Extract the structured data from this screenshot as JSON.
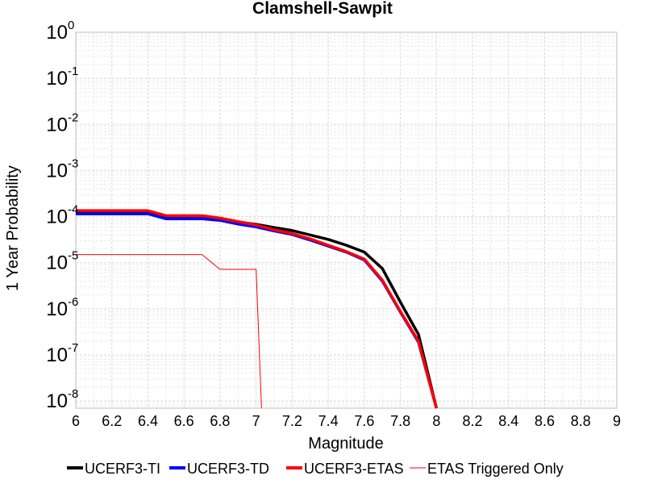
{
  "chart_data": {
    "type": "line",
    "title": "Clamshell-Sawpit",
    "xlabel": "Magnitude",
    "ylabel": "1 Year Probability",
    "xlim": [
      6,
      9
    ],
    "ylim": [
      7e-09,
      1
    ],
    "yscale": "log",
    "grid": true,
    "legend_position": "bottom",
    "x_ticks": [
      "6",
      "6.2",
      "6.4",
      "6.6",
      "6.8",
      "7",
      "7.2",
      "7.4",
      "7.6",
      "7.8",
      "8",
      "8.2",
      "8.4",
      "8.6",
      "8.8",
      "9"
    ],
    "y_ticks": [
      {
        "base": "10",
        "exp": "0"
      },
      {
        "base": "10",
        "exp": "-1"
      },
      {
        "base": "10",
        "exp": "-2"
      },
      {
        "base": "10",
        "exp": "-3"
      },
      {
        "base": "10",
        "exp": "-4"
      },
      {
        "base": "10",
        "exp": "-5"
      },
      {
        "base": "10",
        "exp": "-6"
      },
      {
        "base": "10",
        "exp": "-7"
      },
      {
        "base": "10",
        "exp": "-8"
      }
    ],
    "series": [
      {
        "name": "UCERF3-TI",
        "color": "#000000",
        "width": 3.5,
        "x": [
          6.0,
          6.1,
          6.2,
          6.3,
          6.4,
          6.5,
          6.6,
          6.7,
          6.8,
          6.9,
          7.0,
          7.1,
          7.2,
          7.3,
          7.4,
          7.5,
          7.6,
          7.7,
          7.8,
          7.9,
          8.0
        ],
        "y": [
          0.00012,
          0.00012,
          0.00012,
          0.00012,
          0.00012,
          9.5e-05,
          9.5e-05,
          9.5e-05,
          8.8e-05,
          7.6e-05,
          6.8e-05,
          5.8e-05,
          5e-05,
          4e-05,
          3.2e-05,
          2.4e-05,
          1.7e-05,
          7.5e-06,
          1.4e-06,
          2.8e-07,
          7e-09
        ]
      },
      {
        "name": "UCERF3-TD",
        "color": "#0000ff",
        "width": 3.5,
        "x": [
          6.0,
          6.1,
          6.2,
          6.3,
          6.4,
          6.5,
          6.6,
          6.7,
          6.8,
          6.9,
          7.0,
          7.1,
          7.2,
          7.3,
          7.4,
          7.5,
          7.6,
          7.7,
          7.8,
          7.9,
          8.0
        ],
        "y": [
          0.000115,
          0.000115,
          0.000115,
          0.000115,
          0.000115,
          9e-05,
          9e-05,
          9e-05,
          8.3e-05,
          6.9e-05,
          6e-05,
          4.9e-05,
          4.1e-05,
          3.1e-05,
          2.3e-05,
          1.7e-05,
          1.15e-05,
          4e-06,
          8.5e-07,
          1.9e-07,
          7e-09
        ]
      },
      {
        "name": "UCERF3-ETAS",
        "color": "#ff0000",
        "width": 3.5,
        "x": [
          6.0,
          6.1,
          6.2,
          6.3,
          6.4,
          6.5,
          6.6,
          6.7,
          6.8,
          6.9,
          7.0,
          7.1,
          7.2,
          7.3,
          7.4,
          7.5,
          7.6,
          7.7,
          7.8,
          7.9,
          8.0
        ],
        "y": [
          0.000135,
          0.000135,
          0.000135,
          0.000135,
          0.000135,
          0.000105,
          0.000105,
          0.000105,
          9.3e-05,
          7.8e-05,
          6.6e-05,
          5.2e-05,
          4.3e-05,
          3.3e-05,
          2.4e-05,
          1.75e-05,
          1.2e-05,
          4.2e-06,
          8.8e-07,
          2e-07,
          7e-09
        ]
      },
      {
        "name": "ETAS Triggered Only",
        "color": "#ff0000",
        "width": 1,
        "x": [
          6.0,
          6.1,
          6.2,
          6.3,
          6.4,
          6.5,
          6.6,
          6.7,
          6.8,
          6.9,
          7.0,
          7.03
        ],
        "y": [
          1.5e-05,
          1.5e-05,
          1.5e-05,
          1.5e-05,
          1.5e-05,
          1.5e-05,
          1.5e-05,
          1.5e-05,
          7.2e-06,
          7.2e-06,
          7.2e-06,
          7e-09
        ]
      }
    ]
  }
}
